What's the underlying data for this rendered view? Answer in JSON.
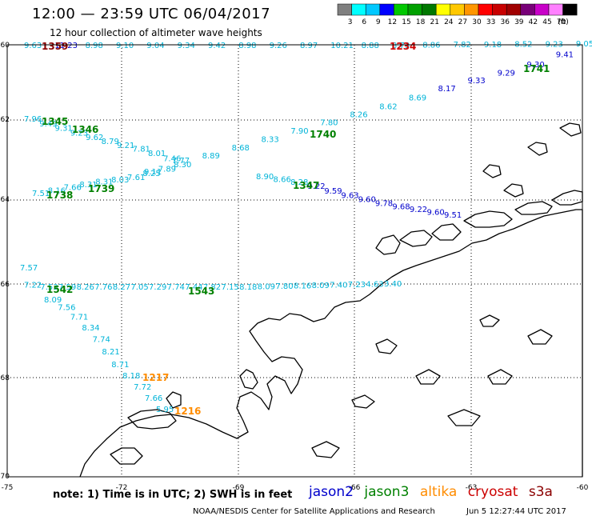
{
  "header": {
    "title": "12:00 — 23:59 UTC 06/04/2017",
    "subtitle": "12 hour collection of altimeter wave heights"
  },
  "colorbar": {
    "unit": "(ft)",
    "bins": [
      {
        "label": "3",
        "color": "#7f7f7f"
      },
      {
        "label": "6",
        "color": "#00ffff"
      },
      {
        "label": "9",
        "color": "#00c8ff"
      },
      {
        "label": "12",
        "color": "#0000ff"
      },
      {
        "label": "15",
        "color": "#00c800"
      },
      {
        "label": "18",
        "color": "#00a000"
      },
      {
        "label": "21",
        "color": "#007800"
      },
      {
        "label": "24",
        "color": "#ffff00"
      },
      {
        "label": "27",
        "color": "#ffc800"
      },
      {
        "label": "30",
        "color": "#ff9600"
      },
      {
        "label": "33",
        "color": "#ff0000"
      },
      {
        "label": "36",
        "color": "#c80000"
      },
      {
        "label": "39",
        "color": "#a00000"
      },
      {
        "label": "42",
        "color": "#780078"
      },
      {
        "label": "45",
        "color": "#c800c8"
      },
      {
        "label": "70",
        "color": "#ff80ff"
      },
      {
        "label": "",
        "color": "#000000"
      }
    ]
  },
  "axes": {
    "lon_labels": [
      "-75",
      "-72",
      "-69",
      "-66",
      "-63",
      "-60"
    ],
    "lat_labels": [
      "-60",
      "-62",
      "-64",
      "-66",
      "-68",
      "-70"
    ]
  },
  "colors": {
    "jason2": "#0000cc",
    "jason3": "#008000",
    "altika": "#ff8c00",
    "cryosat": "#cc0000",
    "s3a": "#8b0000",
    "swh_cyan": "#00b4d8",
    "swh_blue": "#0000cc"
  },
  "footer": {
    "note": "note:  1) Time is in UTC;  2) SWH is in feet",
    "legend": [
      {
        "label": "jason2",
        "key": "jason2"
      },
      {
        "label": "jason3",
        "key": "jason3"
      },
      {
        "label": "altika",
        "key": "altika"
      },
      {
        "label": "cryosat",
        "key": "cryosat"
      },
      {
        "label": "s3a",
        "key": "s3a"
      }
    ],
    "credit": "NOAA/NESDIS Center for Satellite Applications and Research",
    "timestamp": "Jun  5 12:27:44 UTC 2017"
  },
  "time_labels": [
    {
      "text": "1359",
      "sat": "s3a"
    },
    {
      "text": "1234",
      "sat": "cryosat"
    },
    {
      "text": "1741",
      "sat": "jason3"
    },
    {
      "text": "1345",
      "sat": "jason3"
    },
    {
      "text": "1346",
      "sat": "jason3"
    },
    {
      "text": "1740",
      "sat": "jason3"
    },
    {
      "text": "1739",
      "sat": "jason3"
    },
    {
      "text": "1738",
      "sat": "jason3"
    },
    {
      "text": "1347",
      "sat": "jason3"
    },
    {
      "text": "1542",
      "sat": "jason3"
    },
    {
      "text": "1543",
      "sat": "jason3"
    },
    {
      "text": "1217",
      "sat": "altika"
    },
    {
      "text": "1216",
      "sat": "altika"
    }
  ],
  "swh_values": {
    "track_a": [
      "9.63",
      "11.23",
      "8.98",
      "9.10",
      "9.04",
      "9.34",
      "9.42",
      "8.98",
      "9.26",
      "8.97",
      "10.21",
      "8.88",
      "8.73",
      "8.86",
      "7.82",
      "9.18",
      "8.52",
      "9.23",
      "9.05",
      "9.41",
      "9.30",
      "9.29",
      "9.33",
      "8.17",
      "8.69",
      "8.62",
      "8.26",
      "7.80",
      "7.90",
      "8.33",
      "8.68",
      "8.89",
      "7.77",
      "9.11"
    ],
    "track_b": [
      "7.96",
      "9.49",
      "9.31",
      "9.23",
      "9.62",
      "8.79",
      "9.21",
      "7.81",
      "8.01",
      "7.46",
      "8.30",
      "7.89",
      "8.25",
      "7.61",
      "8.03",
      "8.31",
      "8.31",
      "7.66",
      "8.16",
      "7.51"
    ],
    "track_c": [
      "8.90",
      "8.66",
      "8.28",
      "9.22",
      "9.59",
      "9.63",
      "9.60",
      "9.78",
      "9.68",
      "9.22",
      "9.60",
      "9.51"
    ],
    "track_d": [
      "7.57",
      "7.22",
      "7.53",
      "7.59",
      "8.26",
      "7.76",
      "8.27",
      "7.05",
      "7.29",
      "7.74",
      "7.44",
      "7.82",
      "7.15",
      "8.18",
      "8.09",
      "7.80",
      "8.16",
      "8.09",
      "7.40",
      "7.23",
      "4.63",
      "3.40"
    ],
    "track_e": [
      "8.09",
      "7.56",
      "7.71",
      "8.34",
      "7.74",
      "8.21",
      "8.71",
      "8.18",
      "7.72",
      "7.66",
      "5.95"
    ]
  }
}
